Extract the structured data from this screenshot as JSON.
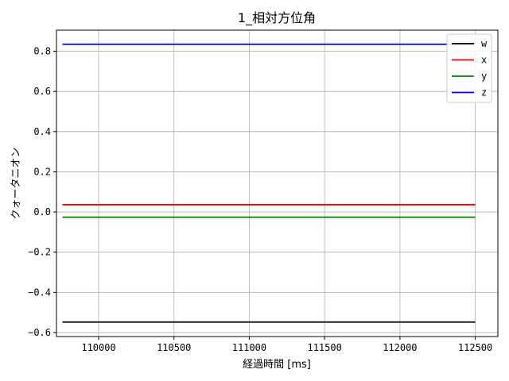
{
  "chart_data": {
    "type": "line",
    "title": "1_相対方位角",
    "xlabel": "経過時間 [ms]",
    "ylabel": "クォータニオン",
    "xlim": [
      109720,
      112650
    ],
    "ylim": [
      -0.62,
      0.905
    ],
    "x_ticks": [
      110000,
      110500,
      111000,
      111500,
      112000,
      112500
    ],
    "y_ticks": [
      -0.6,
      -0.4,
      -0.2,
      0.0,
      0.2,
      0.4,
      0.6,
      0.8
    ],
    "y_tick_labels": [
      "−0.6",
      "−0.4",
      "−0.2",
      "0.0",
      "0.2",
      "0.4",
      "0.6",
      "0.8"
    ],
    "grid": true,
    "legend_position": "top-right",
    "series": [
      {
        "name": "w",
        "color": "#000000",
        "x": [
          109760,
          112500
        ],
        "values": [
          -0.548,
          -0.548
        ]
      },
      {
        "name": "x",
        "color": "#ff0000",
        "x": [
          109760,
          112500
        ],
        "values": [
          0.036,
          0.036
        ]
      },
      {
        "name": "y",
        "color": "#008000",
        "x": [
          109760,
          112500
        ],
        "values": [
          -0.026,
          -0.026
        ]
      },
      {
        "name": "z",
        "color": "#0000ff",
        "x": [
          109760,
          112500
        ],
        "values": [
          0.835,
          0.835
        ]
      }
    ]
  }
}
